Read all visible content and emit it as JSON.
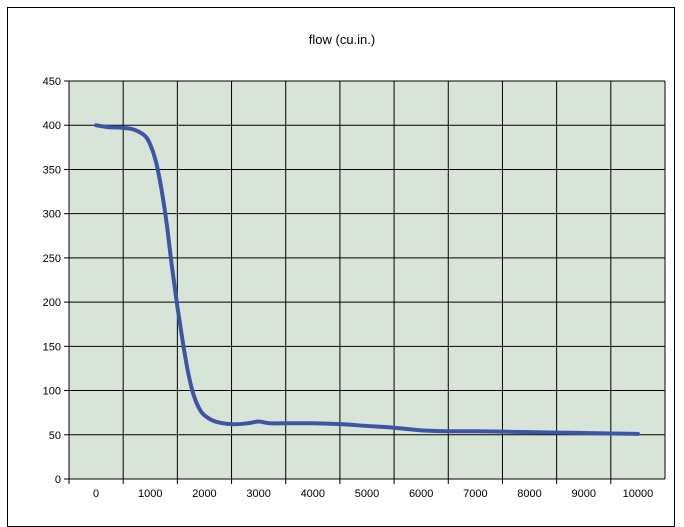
{
  "chart_data": {
    "type": "line",
    "title": "flow (cu.in.)",
    "xlabel": "",
    "ylabel": "",
    "xlim": [
      -500,
      10500
    ],
    "ylim": [
      0,
      450
    ],
    "x_ticks": [
      0,
      1000,
      2000,
      3000,
      4000,
      5000,
      6000,
      7000,
      8000,
      9000,
      10000
    ],
    "y_ticks": [
      0,
      50,
      100,
      150,
      200,
      250,
      300,
      350,
      400,
      450
    ],
    "grid": true,
    "legend": "none",
    "colors": {
      "plot_background": "#D9E4D9",
      "line": "#3F55A4",
      "grid": "#000000"
    },
    "series": [
      {
        "x": [
          0,
          200,
          500,
          700,
          900,
          1000,
          1100,
          1200,
          1300,
          1400,
          1500,
          1600,
          1700,
          1800,
          1900,
          2000,
          2200,
          2500,
          2800,
          3000,
          3200,
          3500,
          4000,
          4500,
          5000,
          5500,
          6000,
          6500,
          7000,
          7500,
          8000,
          8500,
          9000,
          9500,
          10000
        ],
        "y": [
          400,
          398,
          397,
          395,
          388,
          378,
          360,
          330,
          290,
          240,
          195,
          155,
          120,
          95,
          80,
          72,
          65,
          62,
          63,
          65,
          63,
          63,
          63,
          62,
          60,
          58,
          55,
          54,
          54,
          53.5,
          53,
          52.5,
          52,
          51.5,
          51
        ]
      }
    ]
  }
}
